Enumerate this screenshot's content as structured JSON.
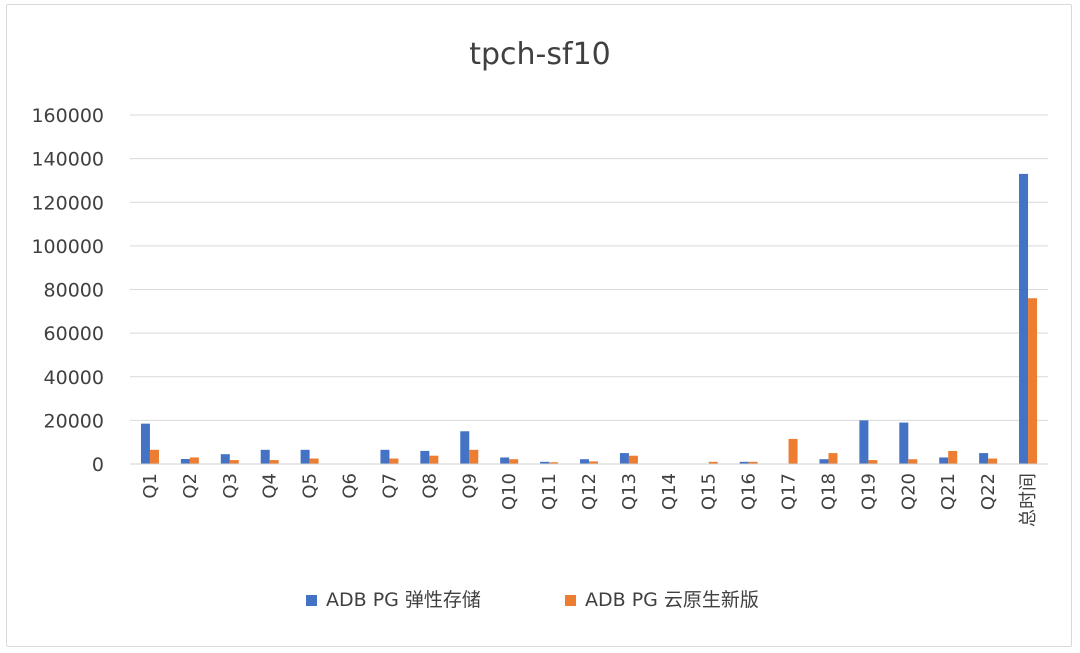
{
  "chart_data": {
    "type": "bar",
    "title": "tpch-sf10",
    "categories": [
      "Q1",
      "Q2",
      "Q3",
      "Q4",
      "Q5",
      "Q6",
      "Q7",
      "Q8",
      "Q9",
      "Q10",
      "Q11",
      "Q12",
      "Q13",
      "Q14",
      "Q15",
      "Q16",
      "Q17",
      "Q18",
      "Q19",
      "Q20",
      "Q21",
      "Q22",
      "总时间"
    ],
    "series": [
      {
        "name": "ADB PG 弹性存储",
        "color": "#4472C4",
        "values": [
          18500,
          2300,
          4500,
          6500,
          6500,
          0,
          6500,
          6000,
          15000,
          3000,
          1000,
          2200,
          5000,
          0,
          0,
          1000,
          0,
          2200,
          20000,
          19000,
          3000,
          5000,
          133000
        ]
      },
      {
        "name": "ADB PG 云原生新版",
        "color": "#ED7D31",
        "values": [
          6500,
          3000,
          1800,
          1800,
          2500,
          0,
          2500,
          3800,
          6500,
          2200,
          800,
          1200,
          3800,
          0,
          1000,
          1000,
          11500,
          5000,
          1800,
          2200,
          6000,
          2500,
          76000
        ]
      }
    ],
    "y_ticks": [
      "0",
      "20000",
      "40000",
      "60000",
      "80000",
      "100000",
      "120000",
      "140000",
      "160000"
    ],
    "ylim": [
      0,
      160000
    ],
    "grid": true,
    "legend_position": "bottom"
  }
}
